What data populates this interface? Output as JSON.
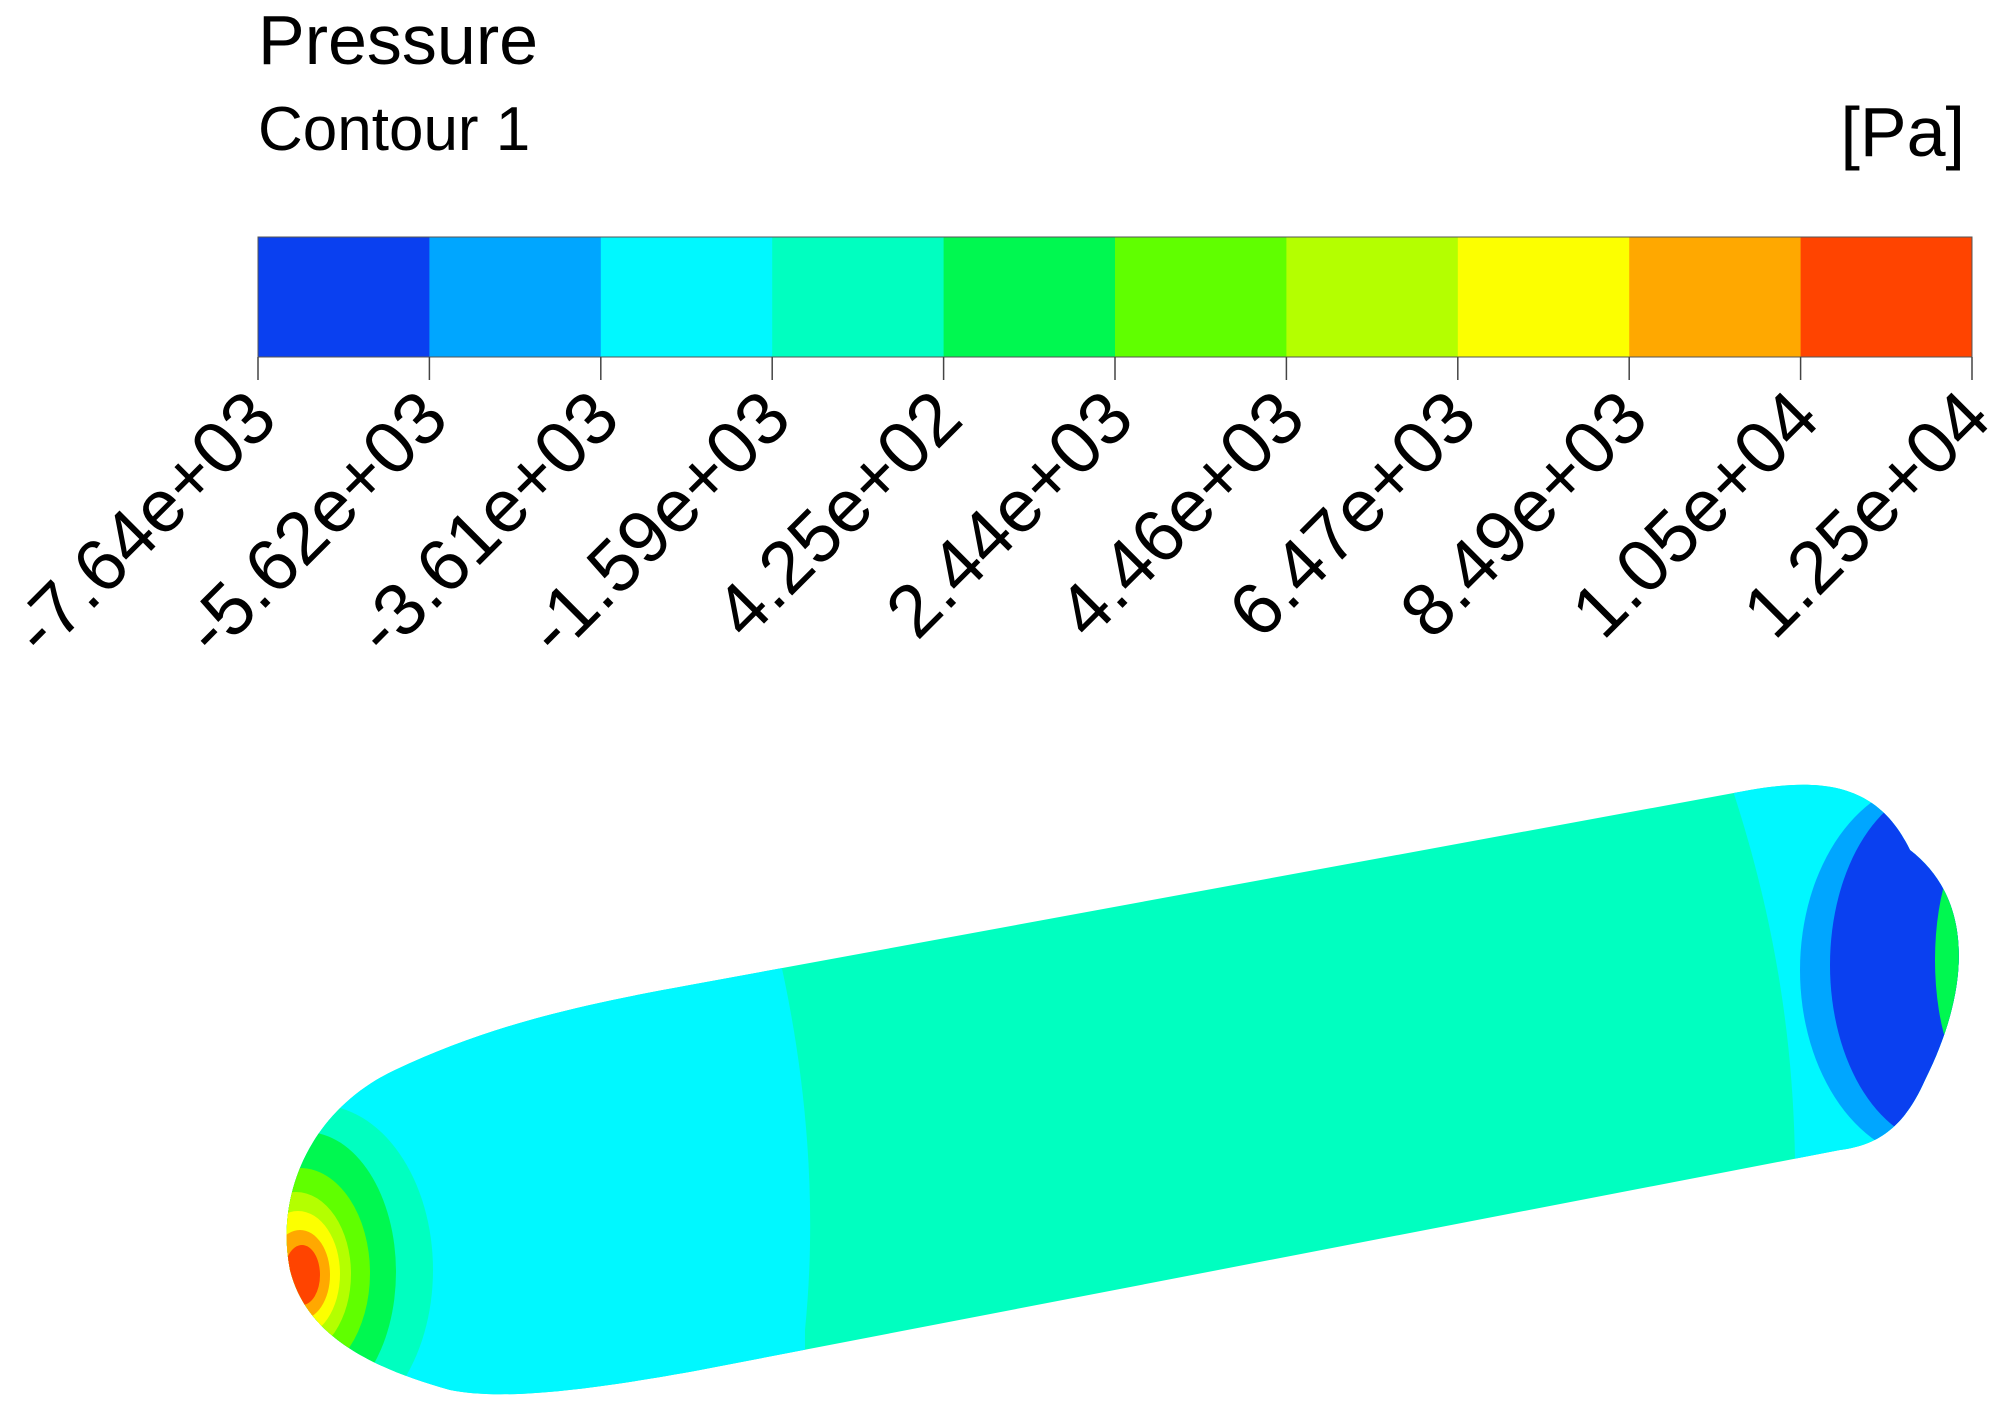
{
  "legend": {
    "title": "Pressure",
    "subtitle": "Contour 1",
    "unit": "[Pa]"
  },
  "chart_data": {
    "type": "heatmap",
    "title": "Pressure",
    "subtitle": "Contour 1",
    "unit": "[Pa]",
    "tick_labels": [
      "-7.64e+03",
      "-5.62e+03",
      "-3.61e+03",
      "-1.59e+03",
      "4.25e+02",
      "2.44e+03",
      "4.46e+03",
      "6.47e+03",
      "8.49e+03",
      "1.05e+04",
      "1.25e+04"
    ],
    "ticks": [
      -7640,
      -5620,
      -3610,
      -1590,
      425,
      2440,
      4460,
      6470,
      8490,
      10500,
      12500
    ],
    "range": [
      -7640,
      12500
    ],
    "color_bands": [
      "#0a40f0",
      "#00a6ff",
      "#00f8ff",
      "#00ffc0",
      "#00f850",
      "#60ff00",
      "#b4ff00",
      "#fcff00",
      "#ffa800",
      "#ff4400"
    ],
    "grid": false
  }
}
